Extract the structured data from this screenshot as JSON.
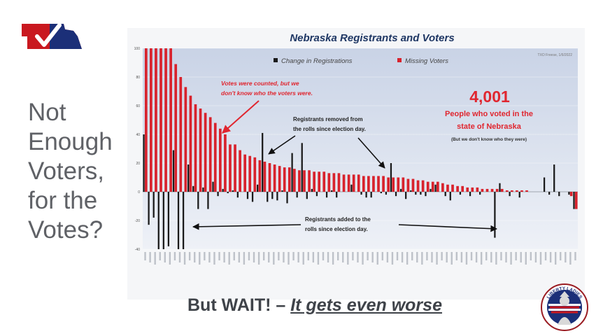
{
  "slide": {
    "side_title_lines": [
      "Not",
      "Enough",
      "Voters,",
      "for the",
      "Votes?"
    ],
    "footer_prefix": "But WAIT! – ",
    "footer_emphasis": "It gets even worse",
    "logo_icon": "nebraska-checkmark-logo-icon",
    "badge_icon": "liberty-ladies-seal-icon",
    "badge_text": "LIBERTY LADIES"
  },
  "annotations": {
    "big_number": "4,001",
    "big_caption_line1": "People who voted in the",
    "big_caption_line2": "state of Nebraska",
    "big_subcaption": "(But we don't know who they were)",
    "votes_note_line1": "Votes were counted, but we",
    "votes_note_line2": "don't know who the voters were.",
    "removed_note_line1": "Registrants removed from",
    "removed_note_line2": "the rolls since election day.",
    "added_note_line1": "Registrants added to the",
    "added_note_line2": "rolls since election day.",
    "source_tag": "TXO Freese, 1/6/2022"
  },
  "colors": {
    "missing": "#d8222c",
    "change": "#1a1a1a",
    "accent_red": "#e0262f",
    "title_blue": "#1f3764"
  },
  "chart_data": {
    "type": "bar",
    "title": "Nebraska Registrants and Voters",
    "legend_position": "top",
    "ylim": [
      -40,
      100
    ],
    "yticks": [
      -40,
      -20,
      0,
      20,
      40,
      60,
      80,
      100
    ],
    "series": [
      {
        "name": "Change in Registrations",
        "values": [
          40,
          -23,
          -18,
          -40,
          -40,
          -38,
          29,
          -40,
          -40,
          19,
          4,
          -12,
          3,
          -12,
          7,
          -3,
          2,
          -1,
          1,
          -4,
          0,
          -5,
          -7,
          5,
          41,
          -7,
          -5,
          -6,
          1,
          -8,
          27,
          -4,
          34,
          -5,
          2,
          -3,
          0,
          -4,
          1,
          -4,
          0,
          0,
          5,
          0,
          -2,
          -4,
          -4,
          0,
          -1,
          -2,
          20,
          -3,
          2,
          -5,
          1,
          -2,
          -2,
          -3,
          2,
          5,
          0,
          -3,
          -6,
          0,
          -2,
          0,
          -3,
          0,
          -2,
          0,
          0,
          -32,
          6,
          0,
          -3,
          0,
          -4,
          0,
          0,
          0,
          0,
          10,
          -2,
          19,
          -3,
          0,
          -2,
          -12
        ]
      },
      {
        "name": "Missing Voters",
        "values": [
          100,
          100,
          100,
          100,
          100,
          100,
          89,
          80,
          73,
          67,
          61,
          58,
          55,
          52,
          48,
          44,
          40,
          33,
          33,
          29,
          26,
          25,
          24,
          22,
          21,
          20,
          19,
          18,
          17,
          17,
          16,
          15,
          15,
          15,
          14,
          14,
          14,
          13,
          13,
          13,
          12,
          12,
          12,
          12,
          11,
          11,
          11,
          11,
          11,
          10,
          10,
          10,
          10,
          9,
          9,
          8,
          8,
          7,
          7,
          7,
          6,
          5,
          5,
          4,
          4,
          3,
          3,
          3,
          2,
          2,
          2,
          2,
          2,
          1,
          1,
          1,
          1,
          1,
          0,
          0,
          0,
          0,
          0,
          0,
          0,
          0,
          -3,
          -12
        ]
      }
    ]
  }
}
